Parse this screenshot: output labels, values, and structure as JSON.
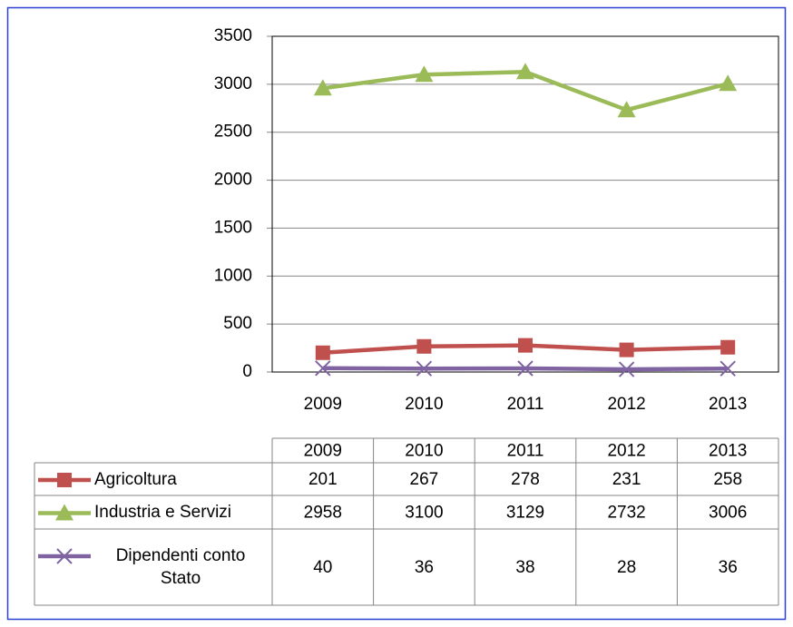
{
  "chart_data": {
    "type": "line",
    "categories": [
      "2009",
      "2010",
      "2011",
      "2012",
      "2013"
    ],
    "series": [
      {
        "name": "Agricoltura",
        "color": "#c0504d",
        "marker": "square",
        "values": [
          201,
          267,
          278,
          231,
          258
        ]
      },
      {
        "name": "Industria e Servizi",
        "color": "#9bbb59",
        "marker": "triangle",
        "values": [
          2958,
          3100,
          3129,
          2732,
          3006
        ]
      },
      {
        "name": "Dipendenti conto Stato",
        "color": "#8064a2",
        "marker": "x",
        "values": [
          40,
          36,
          38,
          28,
          36
        ]
      }
    ],
    "ylim": [
      0,
      3500
    ],
    "yticks": [
      0,
      500,
      1000,
      1500,
      2000,
      2500,
      3000,
      3500
    ],
    "grid": true,
    "data_table": true
  }
}
